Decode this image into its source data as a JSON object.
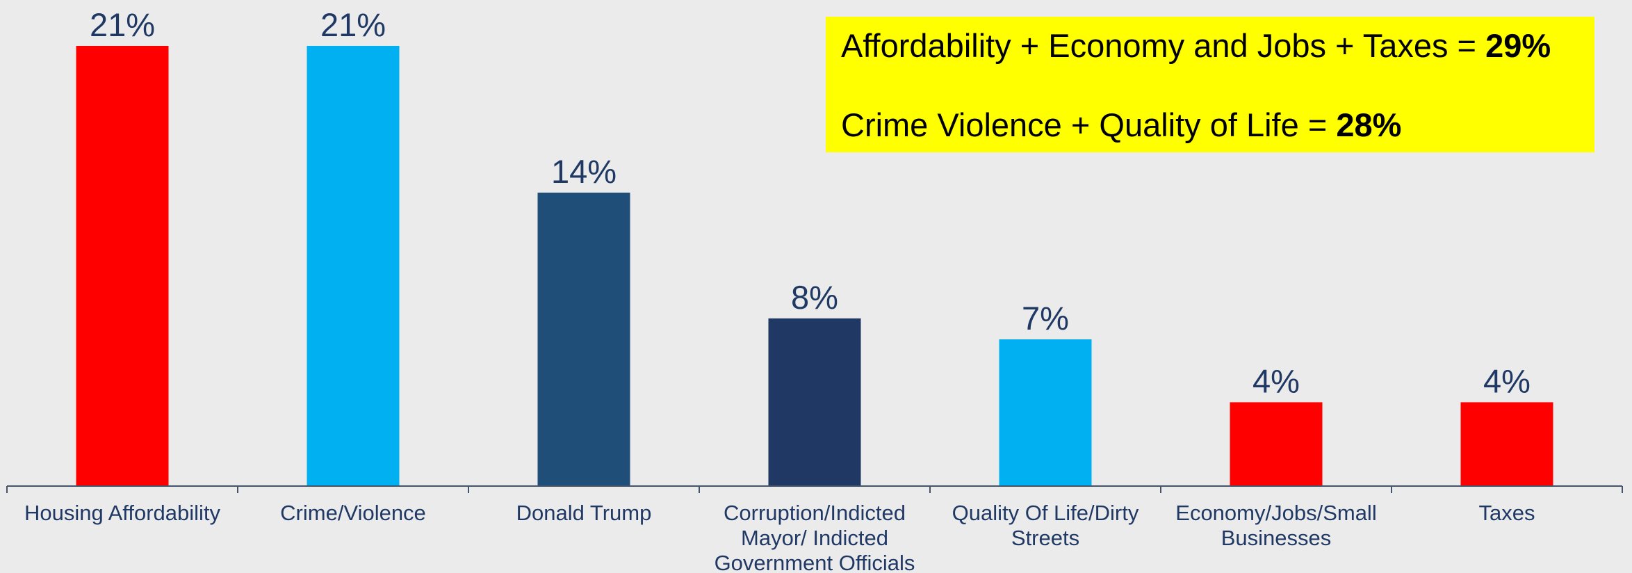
{
  "chart_data": {
    "type": "bar",
    "categories": [
      [
        "Housing Affordability"
      ],
      [
        "Crime/Violence"
      ],
      [
        "Donald Trump"
      ],
      [
        "Corruption/Indicted",
        "Mayor/ Indicted",
        "Government Officials"
      ],
      [
        "Quality Of Life/Dirty",
        "Streets"
      ],
      [
        "Economy/Jobs/Small",
        "Businesses"
      ],
      [
        "Taxes"
      ]
    ],
    "values": [
      21,
      21,
      14,
      8,
      7,
      4,
      4
    ],
    "value_labels": [
      "21%",
      "21%",
      "14%",
      "8%",
      "7%",
      "4%",
      "4%"
    ],
    "bar_colors": [
      "#ff0000",
      "#00b0f0",
      "#1f4e79",
      "#1f3864",
      "#00b0f0",
      "#ff0000",
      "#ff0000"
    ],
    "ylim": [
      0,
      21
    ],
    "title": "",
    "xlabel": "",
    "ylabel": "",
    "grid": false,
    "axis_color": "#44546a",
    "label_color": "#203864"
  },
  "callout": {
    "line1_text": "Affordability + Economy and Jobs + Taxes = ",
    "line1_value": "29%",
    "line2_text": "Crime Violence + Quality of Life = ",
    "line2_value": "28%",
    "background": "#ffff00"
  }
}
